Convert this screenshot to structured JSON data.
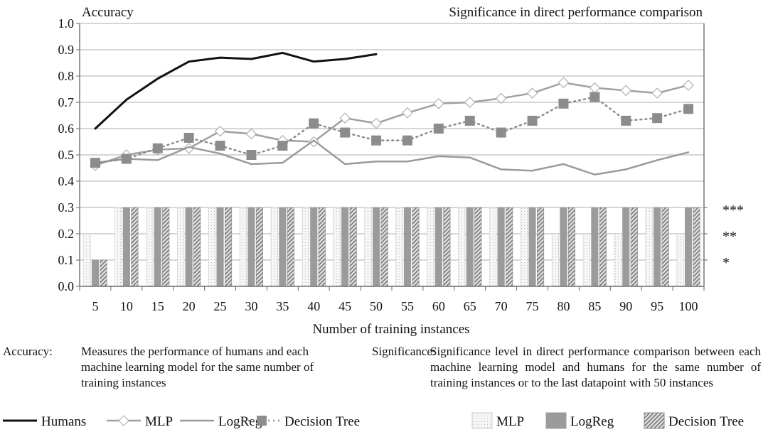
{
  "chart_data": {
    "type": "line+bar",
    "left_title": "Accuracy",
    "right_title": "Significance in direct performance comparison",
    "xlabel": "Number of training instances",
    "x": [
      5,
      10,
      15,
      20,
      25,
      30,
      35,
      40,
      45,
      50,
      55,
      60,
      65,
      70,
      75,
      80,
      85,
      90,
      95,
      100
    ],
    "ylim": [
      0,
      1.0
    ],
    "yticks": [
      "0.0",
      "0.1",
      "0.2",
      "0.3",
      "0.4",
      "0.5",
      "0.6",
      "0.7",
      "0.8",
      "0.9",
      "1.0"
    ],
    "right_ticks": [
      {
        "value": 0.1,
        "label": "*"
      },
      {
        "value": 0.2,
        "label": "**"
      },
      {
        "value": 0.3,
        "label": "***"
      }
    ],
    "grid": true,
    "line_series": [
      {
        "name": "Humans",
        "color": "#111111",
        "style": "solid",
        "marker": "none",
        "values": [
          0.6,
          0.71,
          0.79,
          0.855,
          0.87,
          0.865,
          0.888,
          0.855,
          0.865,
          0.883,
          null,
          null,
          null,
          null,
          null,
          null,
          null,
          null,
          null,
          null
        ]
      },
      {
        "name": "MLP",
        "color": "#a0a0a0",
        "style": "solid",
        "marker": "diamond",
        "values": [
          0.46,
          0.5,
          0.52,
          0.525,
          0.59,
          0.58,
          0.555,
          0.55,
          0.64,
          0.62,
          0.66,
          0.695,
          0.7,
          0.715,
          0.735,
          0.775,
          0.755,
          0.745,
          0.735,
          0.765
        ]
      },
      {
        "name": "LogReg",
        "color": "#9a9a9a",
        "style": "solid",
        "marker": "none",
        "values": [
          0.47,
          0.485,
          0.48,
          0.53,
          0.505,
          0.465,
          0.47,
          0.555,
          0.465,
          0.475,
          0.475,
          0.495,
          0.49,
          0.445,
          0.44,
          0.465,
          0.425,
          0.445,
          0.48,
          0.51
        ]
      },
      {
        "name": "Decision Tree",
        "color": "#8c8c8c",
        "style": "dotted",
        "marker": "square",
        "values": [
          0.47,
          0.485,
          0.525,
          0.565,
          0.535,
          0.5,
          0.535,
          0.62,
          0.585,
          0.555,
          0.555,
          0.6,
          0.63,
          0.585,
          0.63,
          0.695,
          0.72,
          0.63,
          0.64,
          0.675
        ]
      }
    ],
    "bar_series": [
      {
        "name": "MLP",
        "pattern": "light-dotted",
        "values": [
          0.2,
          0.3,
          0.3,
          0.3,
          0.3,
          0.3,
          0.3,
          0.3,
          0.3,
          0.3,
          0.3,
          0.3,
          0.3,
          0.3,
          0.3,
          0.2,
          0.2,
          0.2,
          0.3,
          0.2
        ]
      },
      {
        "name": "LogReg",
        "pattern": "solid-gray",
        "values": [
          0.1,
          0.3,
          0.3,
          0.3,
          0.3,
          0.3,
          0.3,
          0.3,
          0.3,
          0.3,
          0.3,
          0.3,
          0.3,
          0.3,
          0.3,
          0.3,
          0.3,
          0.3,
          0.3,
          0.3
        ]
      },
      {
        "name": "Decision Tree",
        "pattern": "hatched",
        "values": [
          0.1,
          0.3,
          0.3,
          0.3,
          0.3,
          0.3,
          0.3,
          0.3,
          0.3,
          0.3,
          0.3,
          0.3,
          0.3,
          0.3,
          0.3,
          0.3,
          0.3,
          0.3,
          0.3,
          0.3
        ]
      }
    ],
    "legend_placement": "bottom"
  },
  "descriptions": {
    "accuracy_label": "Accuracy:",
    "accuracy_text": "Measures the performance of humans and each machine learning model for the same number of training instances",
    "significance_label": "Significance:",
    "significance_text": "Significance level in direct performance comparison between each machine learning model and humans for the same number of training instances or to the last datapoint with 50 instances"
  }
}
